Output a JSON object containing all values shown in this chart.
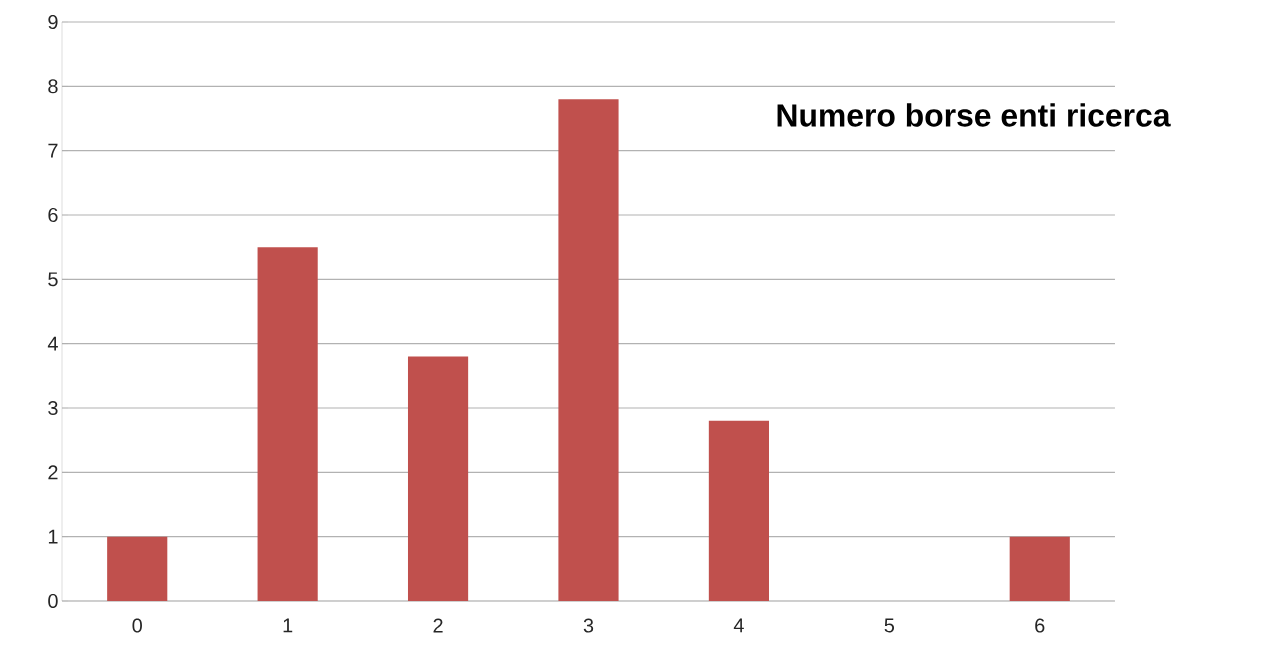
{
  "chart_data": {
    "type": "bar",
    "title": "Numero borse enti ricerca",
    "categories": [
      "0",
      "1",
      "2",
      "3",
      "4",
      "5",
      "6"
    ],
    "values": [
      1,
      5.5,
      3.8,
      7.8,
      2.8,
      0,
      1
    ],
    "color": "#c0504d",
    "ylim": [
      0,
      9
    ],
    "yticks": [
      0,
      1,
      2,
      3,
      4,
      5,
      6,
      7,
      8,
      9
    ],
    "grid": "y"
  }
}
